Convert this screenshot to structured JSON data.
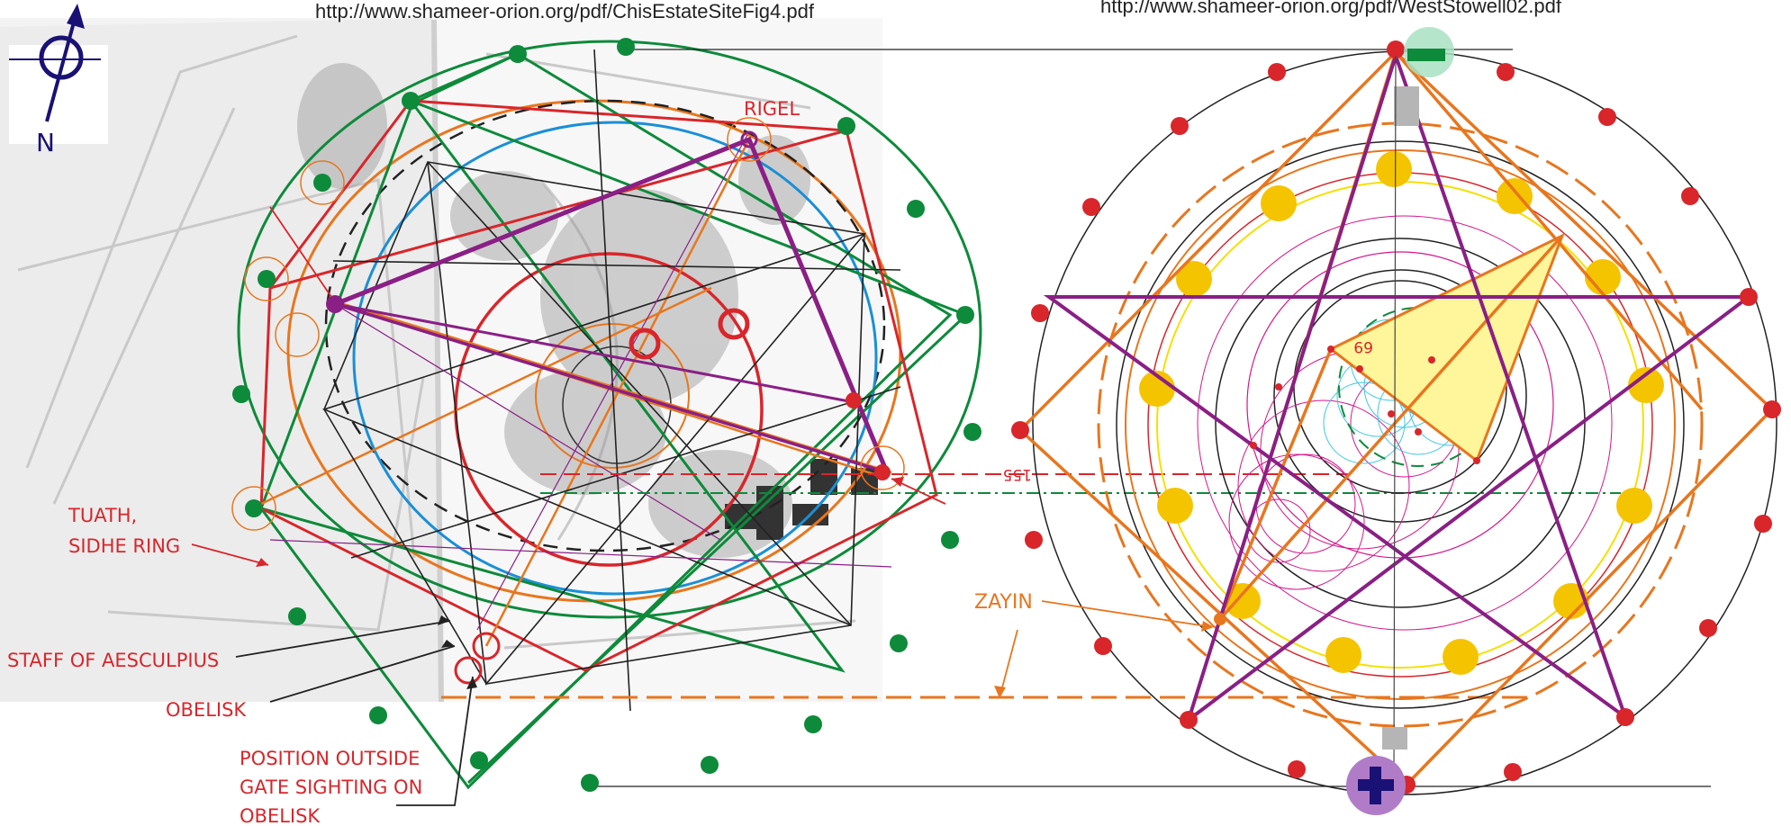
{
  "urls": {
    "left": "http://www.shameer-orion.org/pdf/ChisEstateSiteFig4.pdf",
    "right": "http://www.shameer-orion.org/pdf/WestStowell02.pdf"
  },
  "compass": {
    "letter": "N",
    "icon": "north-arrow-icon"
  },
  "labels": {
    "rigel": "RIGEL",
    "tuath_1": "TUATH,",
    "tuath_2": "SIDHE RING",
    "staff": "STAFF OF AESCULPIUS",
    "obelisk": "OBELISK",
    "position_1": "POSITION OUTSIDE",
    "position_2": "GATE SIGHTING ON",
    "position_3": "OBELISK",
    "zayin": "ZAYIN",
    "angle_155": "155",
    "angle_69": "69"
  },
  "colors": {
    "green": "#0d8a3a",
    "red": "#d8262b",
    "orange": "#e8761e",
    "purple": "#8a1f85",
    "blue": "#1a8fd6",
    "navy": "#1a1175",
    "gold": "#f5c400",
    "magenta": "#d6168a",
    "cyan": "#3cc6e6",
    "yellow_fill": "#fff59a"
  }
}
